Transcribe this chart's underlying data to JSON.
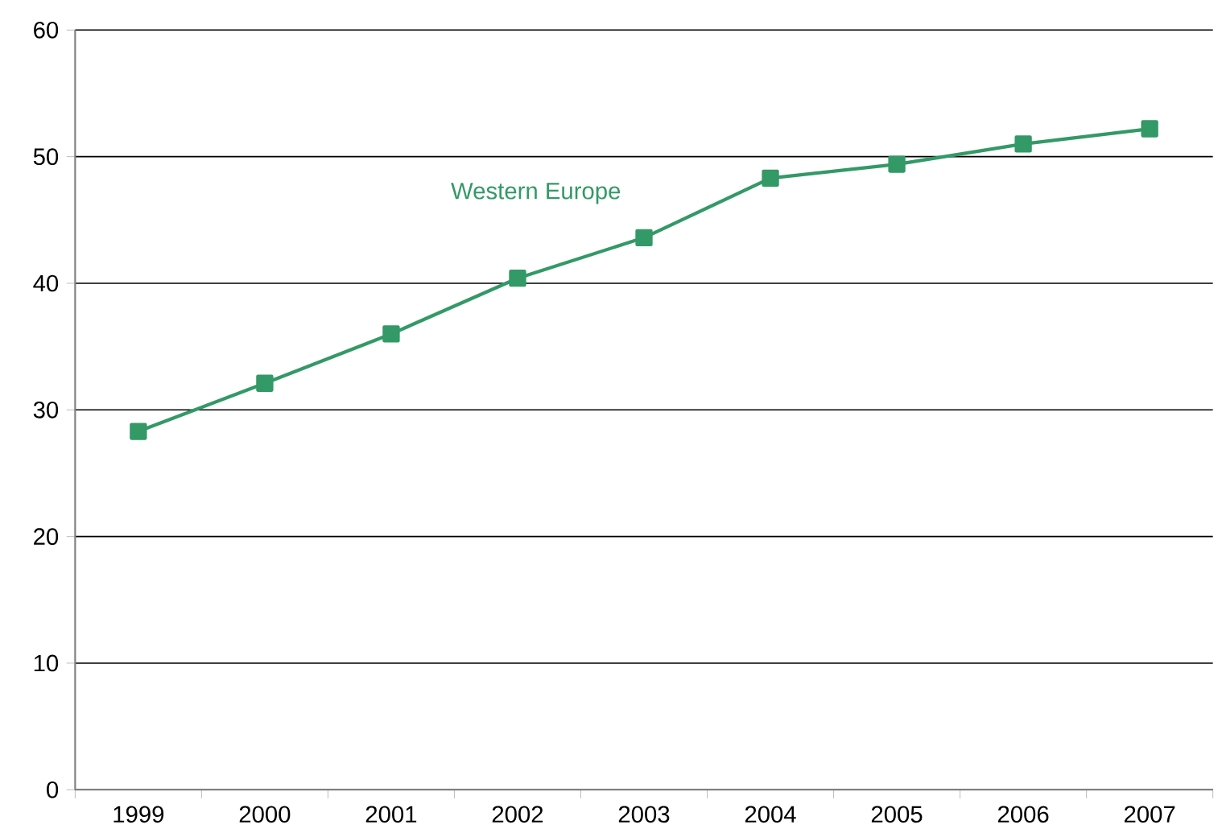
{
  "chart_data": {
    "type": "line",
    "categories": [
      "1999",
      "2000",
      "2001",
      "2002",
      "2003",
      "2004",
      "2005",
      "2006",
      "2007"
    ],
    "series": [
      {
        "name": "Western Europe",
        "color": "#339966",
        "values": [
          28.3,
          32.1,
          36.0,
          40.4,
          43.6,
          48.3,
          49.4,
          51.0,
          52.2
        ]
      }
    ],
    "ylim": [
      0,
      60
    ],
    "yticks": [
      0,
      10,
      20,
      30,
      40,
      50,
      60
    ],
    "grid": "y",
    "marker": "square"
  }
}
